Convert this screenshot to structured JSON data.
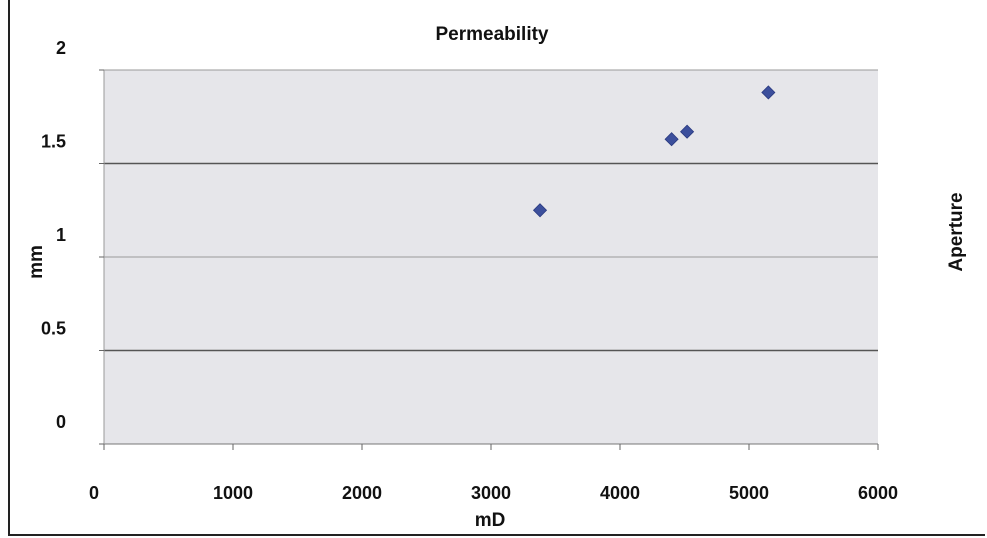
{
  "chart_data": {
    "type": "scatter",
    "title": "Permeability",
    "xlabel": "mD",
    "ylabel": "mm",
    "right_label": "Aperture",
    "xlim": [
      0,
      6000
    ],
    "ylim": [
      0,
      2
    ],
    "x_ticks": [
      0,
      1000,
      2000,
      3000,
      4000,
      5000,
      6000
    ],
    "y_ticks": [
      0,
      0.5,
      1,
      1.5,
      2
    ],
    "x_tick_labels": [
      "0",
      "1000",
      "2000",
      "3000",
      "4000",
      "5000",
      "6000"
    ],
    "y_tick_labels": [
      "0",
      "0.5",
      "1",
      "1.5",
      "2"
    ],
    "grid": true,
    "legend": "none",
    "colors": {
      "plot_bg": "#e6e6ea",
      "marker": "#3c4f9c",
      "grid": "#9a9a9a",
      "grid_strong": "#555555"
    },
    "series": [
      {
        "x": [
          3380,
          4400,
          4520,
          5150
        ],
        "y": [
          1.25,
          1.63,
          1.67,
          1.88
        ]
      }
    ]
  }
}
